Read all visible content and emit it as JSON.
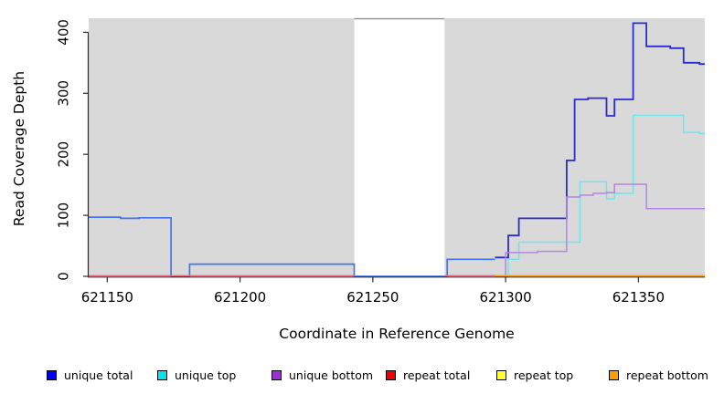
{
  "figure": {
    "background": "#FFFFFF",
    "plot_bg": "#D9D9D9",
    "axis_color": "#2B2B2B",
    "gap_border_color": "#8F8F8F"
  },
  "chart_data": {
    "type": "line",
    "subtype": "step-coverage",
    "title": "",
    "xlabel": "Coordinate in Reference Genome",
    "ylabel": "Read Coverage Depth",
    "xlim": [
      621143,
      621375
    ],
    "ylim": [
      0,
      423
    ],
    "grid": false,
    "x_ticks": [
      621150,
      621200,
      621250,
      621300,
      621350
    ],
    "x_tick_labels": [
      "621150",
      "621200",
      "621250",
      "621300",
      "621350"
    ],
    "y_ticks": [
      0,
      100,
      200,
      300,
      400
    ],
    "y_tick_labels": [
      "0",
      "100",
      "200",
      "300",
      "400"
    ],
    "shaded_region": {
      "from": 621143,
      "to": 621375,
      "color": "#D9D9D9"
    },
    "gap_region": {
      "from": 621243,
      "to": 621277,
      "color": "#FFFFFF"
    },
    "legend_position": "bottom-horizontal",
    "legend": [
      {
        "label": "unique total",
        "color": "#0000EE"
      },
      {
        "label": "unique top",
        "color": "#00E5EE"
      },
      {
        "label": "unique bottom",
        "color": "#9B30D3"
      },
      {
        "label": "repeat total",
        "color": "#EE0000"
      },
      {
        "label": "repeat top",
        "color": "#FFFF33"
      },
      {
        "label": "repeat bottom",
        "color": "#FF9E00"
      }
    ],
    "series": [
      {
        "name": "unique total",
        "part": "left",
        "color": "#4374EA",
        "width": 1.7,
        "segments": [
          [
            [
              621143,
              97
            ],
            [
              621155,
              95
            ],
            [
              621162,
              96
            ],
            [
              621174,
              0
            ],
            [
              621181,
              20
            ],
            [
              621243,
              0
            ],
            [
              621278,
              28
            ],
            [
              621296,
              28
            ]
          ]
        ]
      },
      {
        "name": "unique total",
        "part": "right",
        "color": "#2B2BD2",
        "width": 1.8,
        "segments": [
          [
            [
              621296,
              31
            ],
            [
              621301,
              67
            ],
            [
              621305,
              95
            ],
            [
              621323,
              190
            ],
            [
              621326,
              290
            ],
            [
              621331,
              292
            ],
            [
              621338,
              263
            ],
            [
              621341,
              290
            ],
            [
              621348,
              415
            ],
            [
              621353,
              377
            ],
            [
              621362,
              374
            ],
            [
              621367,
              350
            ],
            [
              621373,
              348
            ],
            [
              621375,
              348
            ]
          ]
        ]
      },
      {
        "name": "unique top",
        "part": "",
        "color": "#70E5EA",
        "width": 1.5,
        "segments": [
          [
            [
              621296,
              0
            ],
            [
              621301,
              28
            ],
            [
              621305,
              56
            ],
            [
              621328,
              155
            ],
            [
              621338,
              127
            ],
            [
              621341,
              136
            ],
            [
              621348,
              264
            ],
            [
              621367,
              236
            ],
            [
              621373,
              234
            ],
            [
              621375,
              234
            ]
          ]
        ]
      },
      {
        "name": "unique bottom",
        "part": "",
        "color": "#B286E2",
        "width": 1.5,
        "segments": [
          [
            [
              621296,
              0
            ],
            [
              621300,
              39
            ],
            [
              621312,
              41
            ],
            [
              621323,
              130
            ],
            [
              621328,
              133
            ],
            [
              621333,
              136
            ],
            [
              621338,
              137
            ],
            [
              621341,
              151
            ],
            [
              621353,
              111
            ],
            [
              621375,
              111
            ]
          ]
        ]
      },
      {
        "name": "repeat total",
        "part": "",
        "color": "#E8697F",
        "width": 1.4,
        "segments": [
          [
            [
              621143,
              1
            ],
            [
              621243,
              1
            ]
          ],
          [
            [
              621277,
              1
            ],
            [
              621296,
              1
            ]
          ]
        ]
      },
      {
        "name": "repeat top",
        "part": "",
        "color": "#FFFF33",
        "width": 1.4,
        "segments": []
      },
      {
        "name": "repeat bottom",
        "part": "",
        "color": "#FF9E19",
        "width": 1.6,
        "segments": [
          [
            [
              621296,
              1
            ],
            [
              621375,
              1
            ]
          ]
        ]
      }
    ]
  }
}
